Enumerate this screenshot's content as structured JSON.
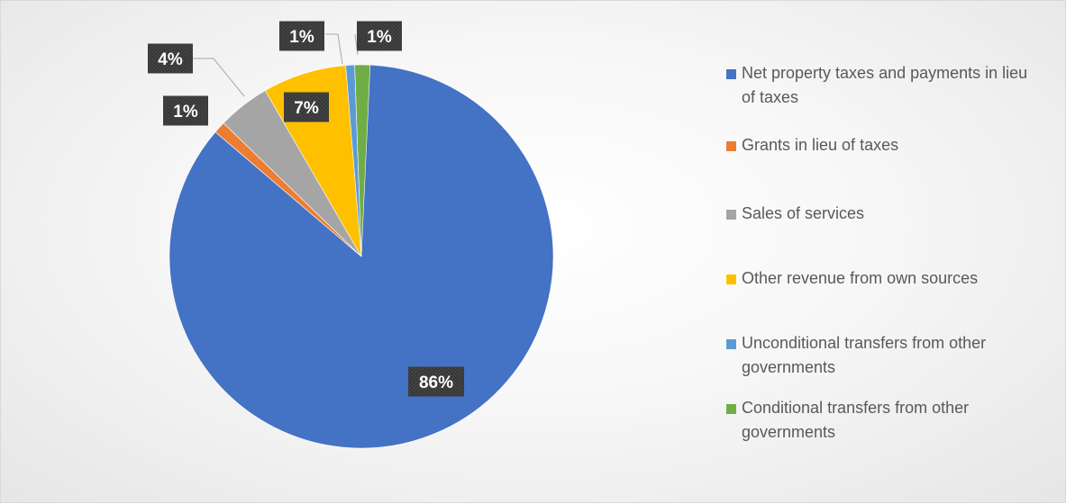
{
  "chart_data": {
    "type": "pie",
    "categories": [
      "Net property taxes and payments in lieu of taxes",
      "Grants in lieu of taxes",
      "Sales of services",
      "Other revenue from own sources",
      "Unconditional transfers from other governments",
      "Conditional transfers from other governments"
    ],
    "values": [
      86,
      1,
      4,
      7,
      1,
      1
    ],
    "data_labels": [
      "86%",
      "1%",
      "4%",
      "7%",
      "1%",
      "1%"
    ],
    "colors": [
      "#4472C4",
      "#ED7D31",
      "#A5A5A5",
      "#FFC000",
      "#5B9BD5",
      "#70AD47"
    ],
    "title": "",
    "legend_position": "right"
  }
}
